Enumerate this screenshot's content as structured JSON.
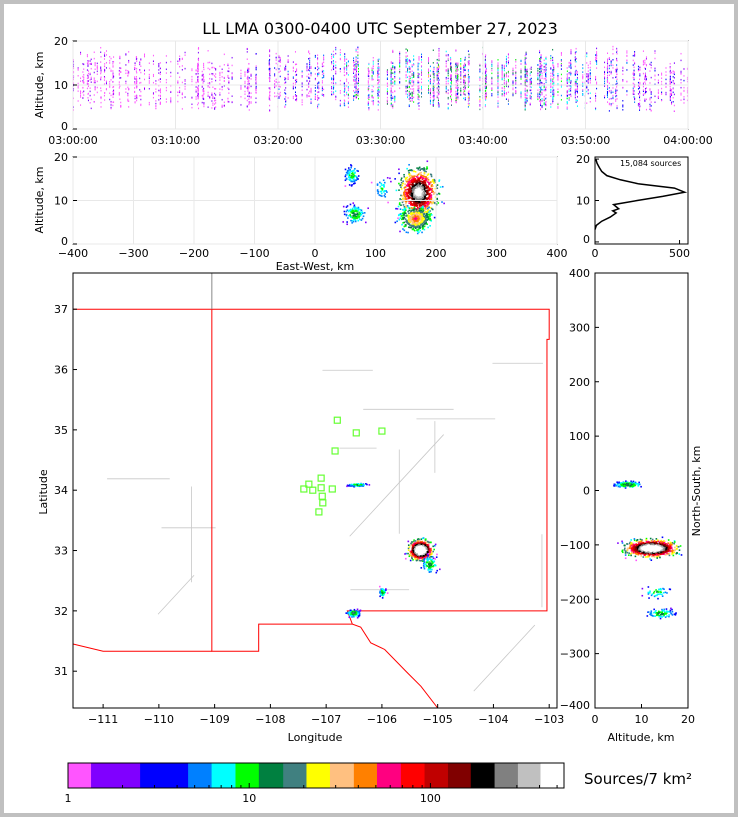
{
  "chart_data": {
    "title": "LL LMA 0300-0400 UTC September 27, 2023",
    "panels": {
      "time_height": {
        "type": "scatter",
        "ylabel": "Altitude, km",
        "xlim_minutes": [
          0,
          60
        ],
        "ylim": [
          0,
          20
        ],
        "xticks": [
          "03:00:00",
          "03:10:00",
          "03:20:00",
          "03:30:00",
          "03:40:00",
          "03:50:00",
          "04:00:00"
        ],
        "yticks": [
          "0",
          "10",
          "20"
        ],
        "activity_peak_minutes": [
          30,
          45
        ]
      },
      "ew_height": {
        "type": "scatter",
        "xlabel": "East-West, km",
        "ylabel": "Altitude, km",
        "xlim": [
          -400,
          400
        ],
        "ylim": [
          0,
          20
        ],
        "xticks": [
          "−400",
          "−300",
          "−200",
          "−100",
          "0",
          "100",
          "200",
          "300",
          "400"
        ],
        "yticks": [
          "0",
          "10",
          "20"
        ],
        "clusters": [
          {
            "x": 170,
            "alt": 12,
            "sx": 20,
            "salt": 3.5,
            "n": 900
          },
          {
            "x": 165,
            "alt": 6,
            "sx": 18,
            "salt": 2,
            "n": 400
          },
          {
            "x": 60,
            "alt": 16,
            "sx": 8,
            "salt": 1.5,
            "n": 80
          },
          {
            "x": 65,
            "alt": 7,
            "sx": 12,
            "salt": 1.5,
            "n": 120
          },
          {
            "x": 110,
            "alt": 13,
            "sx": 8,
            "salt": 2,
            "n": 40
          }
        ]
      },
      "altitude_histogram": {
        "type": "line",
        "annotation": "15,084 sources",
        "xlim": [
          0,
          550
        ],
        "ylim": [
          -0.5,
          20.5
        ],
        "xticks": [
          "0",
          "500"
        ],
        "yticks": [
          "0",
          "10",
          "20"
        ],
        "profile": [
          [
            3,
            0
          ],
          [
            4,
            8
          ],
          [
            5,
            40
          ],
          [
            6,
            90
          ],
          [
            7,
            125
          ],
          [
            7.5,
            105
          ],
          [
            8,
            140
          ],
          [
            9,
            110
          ],
          [
            10,
            250
          ],
          [
            11,
            400
          ],
          [
            12,
            530
          ],
          [
            13,
            470
          ],
          [
            14,
            260
          ],
          [
            15,
            150
          ],
          [
            16,
            70
          ],
          [
            17,
            40
          ],
          [
            18,
            25
          ],
          [
            19,
            12
          ],
          [
            20,
            5
          ]
        ]
      },
      "plan_view": {
        "type": "scatter",
        "xlabel": "Longitude",
        "ylabel": "Latitude",
        "xlim": [
          -111.54,
          -102.86
        ],
        "ylim": [
          30.39,
          37.6
        ],
        "xticks": [
          {
            "v": -111,
            "l": "−111"
          },
          {
            "v": -110,
            "l": "−110"
          },
          {
            "v": -109,
            "l": "−109"
          },
          {
            "v": -108,
            "l": "−108"
          },
          {
            "v": -107,
            "l": "−107"
          },
          {
            "v": -106,
            "l": "−106"
          },
          {
            "v": -105,
            "l": "−105"
          },
          {
            "v": -104,
            "l": "−104"
          },
          {
            "v": -103,
            "l": "−103"
          }
        ],
        "yticks": [
          {
            "v": 31,
            "l": "31"
          },
          {
            "v": 32,
            "l": "32"
          },
          {
            "v": 33,
            "l": "33"
          },
          {
            "v": 34,
            "l": "34"
          },
          {
            "v": 35,
            "l": "35"
          },
          {
            "v": 36,
            "l": "36"
          },
          {
            "v": 37,
            "l": "37"
          }
        ],
        "stations": [
          [
            -106.8,
            35.16
          ],
          [
            -106.46,
            34.95
          ],
          [
            -106.0,
            34.98
          ],
          [
            -106.84,
            34.65
          ],
          [
            -107.09,
            34.2
          ],
          [
            -107.31,
            34.1
          ],
          [
            -107.4,
            34.02
          ],
          [
            -107.24,
            34.0
          ],
          [
            -107.09,
            34.04
          ],
          [
            -106.89,
            34.02
          ],
          [
            -107.07,
            33.9
          ],
          [
            -107.06,
            33.79
          ],
          [
            -107.13,
            33.64
          ]
        ],
        "clusters": [
          {
            "lon": -105.32,
            "lat": 33.02,
            "slon": 0.13,
            "slat": 0.1,
            "n": 1100
          },
          {
            "lon": -105.15,
            "lat": 32.78,
            "slon": 0.1,
            "slat": 0.1,
            "n": 80
          },
          {
            "lon": -106.45,
            "lat": 34.1,
            "slon": 0.12,
            "slat": 0.02,
            "n": 60
          },
          {
            "lon": -106.52,
            "lat": 31.97,
            "slon": 0.08,
            "slat": 0.04,
            "n": 120
          },
          {
            "lon": -106.0,
            "lat": 32.32,
            "slon": 0.04,
            "slat": 0.06,
            "n": 60
          }
        ],
        "state_border": [
          [
            -111.54,
            37
          ],
          [
            -103.0,
            37
          ],
          [
            -103.0,
            36.5
          ],
          [
            -103.04,
            36.5
          ],
          [
            -103.04,
            32.0
          ],
          [
            -106.62,
            32.0
          ],
          [
            -106.53,
            31.78
          ],
          [
            -106.38,
            31.73
          ],
          [
            -106.2,
            31.47
          ],
          [
            -105.95,
            31.36
          ],
          [
            -105.55,
            30.98
          ],
          [
            -105.3,
            30.75
          ],
          [
            -105.0,
            30.39
          ]
        ],
        "nm_west_border": [
          [
            -109.05,
            37
          ],
          [
            -109.05,
            31.33
          ],
          [
            -108.21,
            31.33
          ],
          [
            -108.21,
            31.78
          ],
          [
            -106.53,
            31.78
          ]
        ],
        "az_mexico_border": [
          [
            -111.54,
            31.45
          ],
          [
            -111.0,
            31.33
          ],
          [
            -109.05,
            31.33
          ]
        ]
      },
      "ns_height": {
        "type": "scatter",
        "xlabel": "Altitude, km",
        "ylabel": "North-South, km",
        "xlim": [
          0,
          20
        ],
        "ylim": [
          -400,
          400
        ],
        "xticks": [
          "0",
          "10",
          "20"
        ],
        "yticks": [
          "−400",
          "−300",
          "−200",
          "−100",
          "0",
          "100",
          "200",
          "300",
          "400"
        ],
        "clusters": [
          {
            "alt": 12,
            "y": -105,
            "salt": 3.5,
            "sy": 10,
            "n": 1000
          },
          {
            "alt": 7,
            "y": 12,
            "salt": 2,
            "sy": 4,
            "n": 120
          },
          {
            "alt": 14,
            "y": -225,
            "salt": 2,
            "sy": 6,
            "n": 80
          },
          {
            "alt": 13,
            "y": -185,
            "salt": 2,
            "sy": 8,
            "n": 40
          }
        ]
      }
    },
    "colorbar": {
      "label": "Sources/7 km²",
      "scale": "log",
      "range": [
        1,
        546
      ],
      "ticks": [
        "1",
        "10",
        "100"
      ],
      "boundaries": [
        1,
        1.34,
        2.5,
        4.6,
        6.2,
        8.4,
        11.3,
        15.4,
        20.7,
        27.9,
        37.8,
        50.7,
        68.7,
        92.8,
        125,
        167,
        226,
        304,
        405,
        546
      ],
      "colors": [
        "#ff55ff",
        "#8000ff",
        "#0000ff",
        "#0080ff",
        "#00ffff",
        "#00ff00",
        "#008040",
        "#408080",
        "#ffff00",
        "#ffc080",
        "#ff8000",
        "#ff0080",
        "#ff0000",
        "#c00000",
        "#800000",
        "#000000",
        "#808080",
        "#c0c0c0",
        "#ffffff"
      ]
    }
  }
}
